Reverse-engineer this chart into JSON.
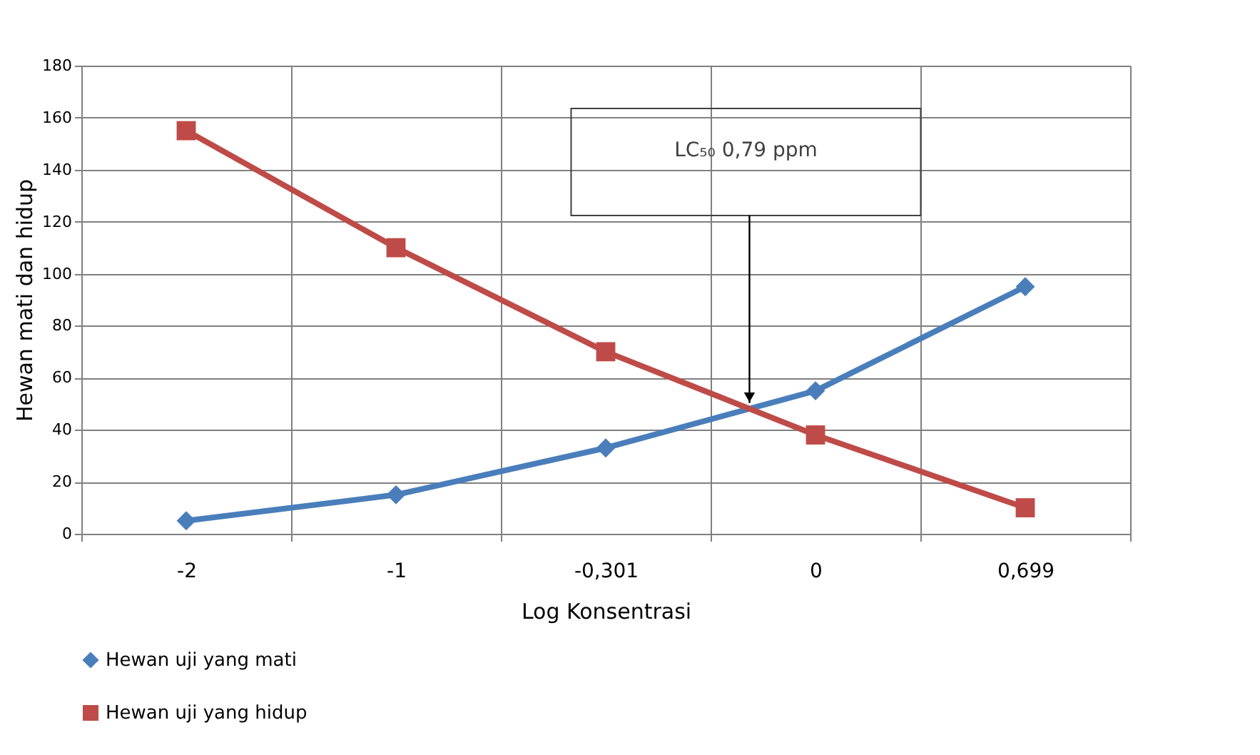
{
  "chart_data": {
    "type": "line",
    "xlabel": "Log Konsentrasi",
    "ylabel": "Hewan mati dan hidup",
    "categories": [
      "-2",
      "-1",
      "-0,301",
      "0",
      "0,699"
    ],
    "series": [
      {
        "name": "Hewan uji yang mati",
        "color": "#4a7ebb",
        "marker": "diamond",
        "values": [
          5,
          15,
          33,
          55,
          95
        ]
      },
      {
        "name": "Hewan uji yang hidup",
        "color": "#be4b48",
        "marker": "square",
        "values": [
          155,
          110,
          70,
          38,
          10
        ]
      }
    ],
    "ylim": [
      0,
      180
    ],
    "yticks": [
      0,
      20,
      40,
      60,
      80,
      100,
      120,
      140,
      160,
      180
    ],
    "grid": true,
    "legend": "bottom left",
    "line_style": "solid",
    "annotations": [
      "LC₅₀ 0,79 ppm"
    ]
  }
}
